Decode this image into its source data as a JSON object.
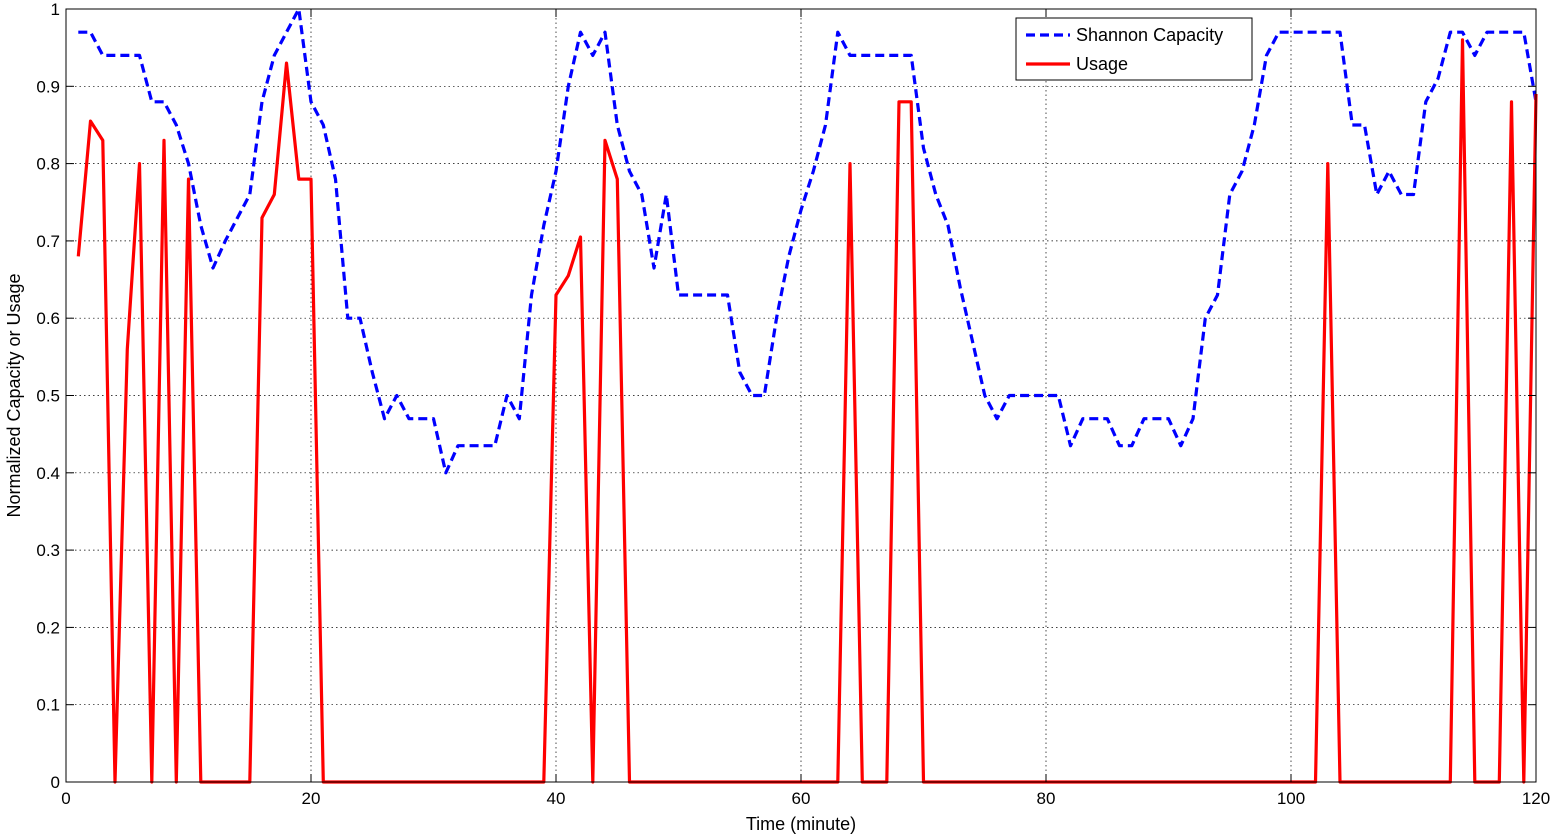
{
  "chart_data": {
    "type": "line",
    "title": "",
    "xlabel": "Time (minute)",
    "ylabel": "Normalized Capacity or Usage",
    "xlim": [
      0,
      120
    ],
    "ylim": [
      0,
      1
    ],
    "xticks": [
      0,
      20,
      40,
      60,
      80,
      100,
      120
    ],
    "yticks": [
      0,
      0.1,
      0.2,
      0.3,
      0.4,
      0.5,
      0.6,
      0.7,
      0.8,
      0.9,
      1
    ],
    "grid": true,
    "legend": "top-right",
    "series": [
      {
        "name": "Shannon Capacity",
        "color": "#0000ff",
        "style": "dashed",
        "x": [
          1,
          2,
          3,
          4,
          5,
          6,
          7,
          8,
          9,
          10,
          11,
          12,
          13,
          14,
          15,
          16,
          17,
          18,
          19,
          20,
          21,
          22,
          23,
          24,
          25,
          26,
          27,
          28,
          29,
          30,
          31,
          32,
          33,
          34,
          35,
          36,
          37,
          38,
          39,
          40,
          41,
          42,
          43,
          44,
          45,
          46,
          47,
          48,
          49,
          50,
          51,
          52,
          53,
          54,
          55,
          56,
          57,
          58,
          59,
          60,
          61,
          62,
          63,
          64,
          65,
          66,
          67,
          68,
          69,
          70,
          71,
          72,
          73,
          74,
          75,
          76,
          77,
          78,
          79,
          80,
          81,
          82,
          83,
          84,
          85,
          86,
          87,
          88,
          89,
          90,
          91,
          92,
          93,
          94,
          95,
          96,
          97,
          98,
          99,
          100,
          101,
          102,
          103,
          104,
          105,
          106,
          107,
          108,
          109,
          110,
          111,
          112,
          113,
          114,
          115,
          116,
          117,
          118,
          119,
          120
        ],
        "y": [
          0.97,
          0.97,
          0.94,
          0.94,
          0.94,
          0.94,
          0.88,
          0.88,
          0.85,
          0.8,
          0.72,
          0.665,
          0.7,
          0.73,
          0.76,
          0.88,
          0.94,
          0.97,
          1.0,
          0.88,
          0.85,
          0.78,
          0.6,
          0.6,
          0.53,
          0.47,
          0.5,
          0.47,
          0.47,
          0.47,
          0.4,
          0.435,
          0.435,
          0.435,
          0.435,
          0.5,
          0.47,
          0.63,
          0.72,
          0.79,
          0.9,
          0.97,
          0.94,
          0.97,
          0.85,
          0.79,
          0.76,
          0.665,
          0.76,
          0.63,
          0.63,
          0.63,
          0.63,
          0.63,
          0.53,
          0.5,
          0.5,
          0.6,
          0.68,
          0.74,
          0.79,
          0.85,
          0.97,
          0.94,
          0.94,
          0.94,
          0.94,
          0.94,
          0.94,
          0.82,
          0.76,
          0.72,
          0.64,
          0.57,
          0.5,
          0.47,
          0.5,
          0.5,
          0.5,
          0.5,
          0.5,
          0.435,
          0.47,
          0.47,
          0.47,
          0.435,
          0.435,
          0.47,
          0.47,
          0.47,
          0.435,
          0.47,
          0.6,
          0.63,
          0.76,
          0.79,
          0.85,
          0.94,
          0.97,
          0.97,
          0.97,
          0.97,
          0.97,
          0.97,
          0.85,
          0.85,
          0.76,
          0.79,
          0.76,
          0.76,
          0.88,
          0.91,
          0.97,
          0.97,
          0.94,
          0.97,
          0.97,
          0.97,
          0.97,
          0.88
        ]
      },
      {
        "name": "Usage",
        "color": "#ff0000",
        "style": "solid",
        "x": [
          1,
          2,
          3,
          4,
          5,
          6,
          7,
          8,
          9,
          10,
          11,
          12,
          13,
          14,
          15,
          16,
          17,
          18,
          19,
          20,
          21,
          22,
          23,
          24,
          25,
          26,
          27,
          28,
          29,
          30,
          31,
          32,
          33,
          34,
          35,
          36,
          37,
          38,
          39,
          40,
          41,
          42,
          43,
          44,
          45,
          46,
          47,
          48,
          49,
          50,
          51,
          52,
          53,
          54,
          55,
          56,
          57,
          58,
          59,
          60,
          61,
          62,
          63,
          64,
          65,
          66,
          67,
          68,
          69,
          70,
          71,
          72,
          73,
          74,
          75,
          76,
          77,
          78,
          79,
          80,
          81,
          82,
          83,
          84,
          85,
          86,
          87,
          88,
          89,
          90,
          91,
          92,
          93,
          94,
          95,
          96,
          97,
          98,
          99,
          100,
          101,
          102,
          103,
          104,
          105,
          106,
          107,
          108,
          109,
          110,
          111,
          112,
          113,
          114,
          115,
          116,
          117,
          118,
          119,
          120
        ],
        "y": [
          0.68,
          0.855,
          0.83,
          0,
          0.56,
          0.8,
          0,
          0.83,
          0,
          0.78,
          0,
          0,
          0,
          0,
          0,
          0.73,
          0.76,
          0.93,
          0.78,
          0.78,
          0,
          0,
          0,
          0,
          0,
          0,
          0,
          0,
          0,
          0,
          0,
          0,
          0,
          0,
          0,
          0,
          0,
          0,
          0,
          0.63,
          0.655,
          0.705,
          0,
          0.83,
          0.78,
          0,
          0,
          0,
          0,
          0,
          0,
          0,
          0,
          0,
          0,
          0,
          0,
          0,
          0,
          0,
          0,
          0,
          0,
          0.8,
          0,
          0,
          0,
          0.88,
          0.88,
          0,
          0,
          0,
          0,
          0,
          0,
          0,
          0,
          0,
          0,
          0,
          0,
          0,
          0,
          0,
          0,
          0,
          0,
          0,
          0,
          0,
          0,
          0,
          0,
          0,
          0,
          0,
          0,
          0,
          0,
          0,
          0,
          0,
          0.8,
          0,
          0,
          0,
          0,
          0,
          0,
          0,
          0,
          0,
          0,
          0.96,
          0,
          0,
          0,
          0.88,
          0,
          0.89
        ]
      }
    ]
  }
}
